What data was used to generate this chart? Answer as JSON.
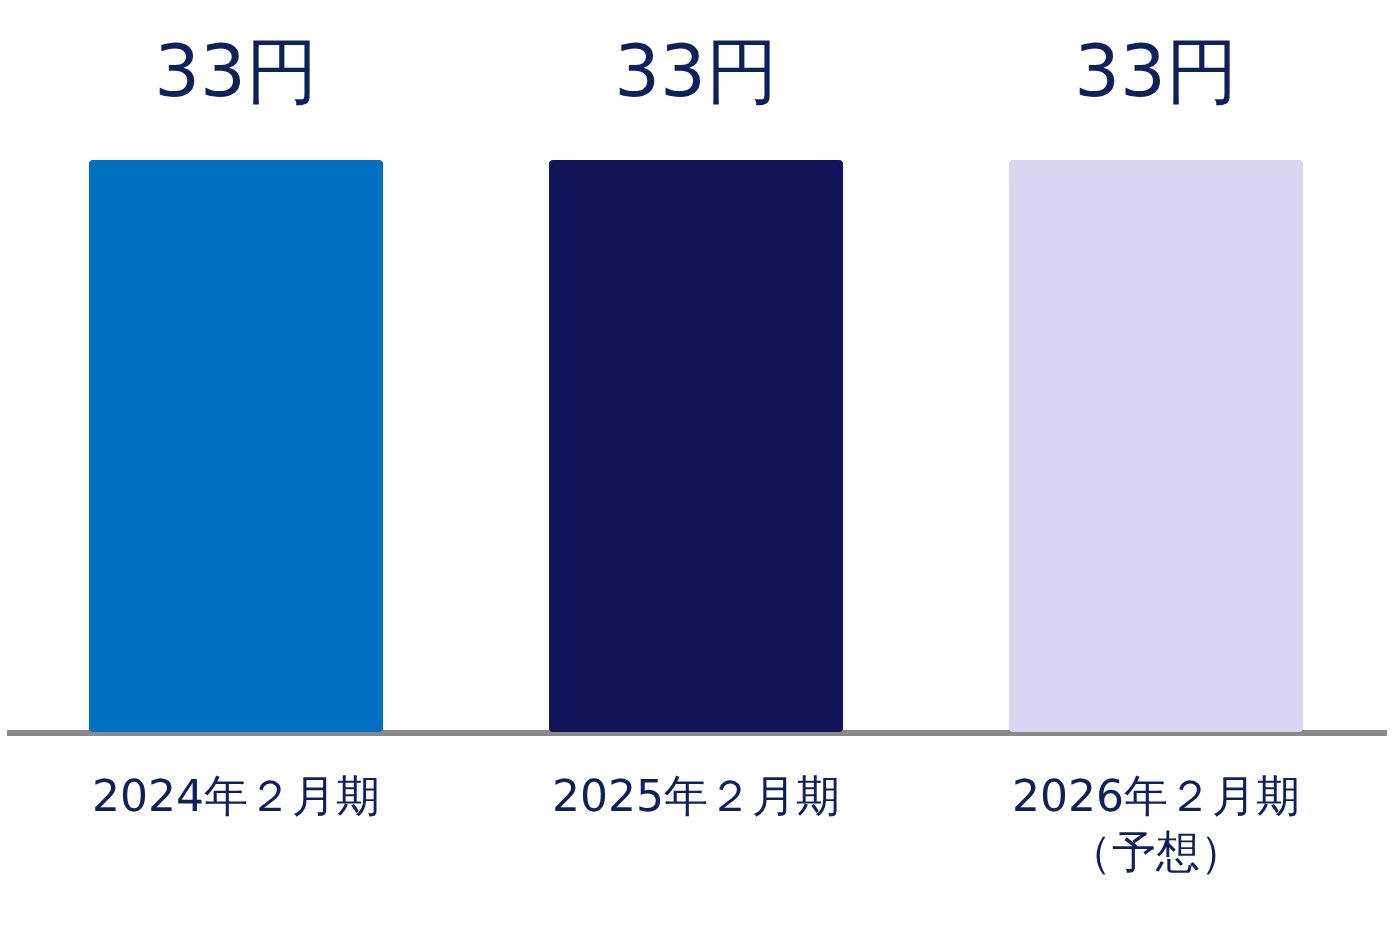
{
  "chart_data": {
    "type": "bar",
    "categories": [
      "2024年２月期",
      "2025年２月期",
      "2026年２月期（予想）"
    ],
    "values": [
      33,
      33,
      33
    ],
    "colors": [
      "#0070c0",
      "#12145a",
      "#d9d5f2"
    ],
    "value_labels": [
      "33円",
      "33円",
      "33円"
    ]
  }
}
